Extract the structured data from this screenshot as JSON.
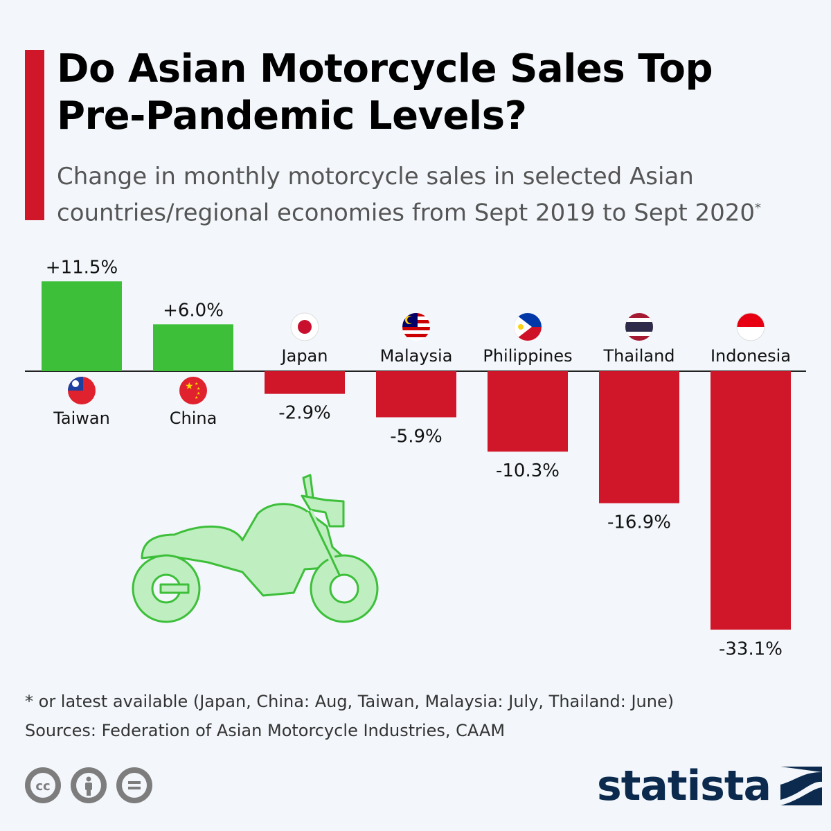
{
  "title": "Do Asian Motorcycle Sales Top Pre-Pandemic Levels?",
  "subtitle": "Change in monthly motorcycle sales in selected Asian countries/regional economies from Sept 2019 to Sept 2020",
  "subtitle_mark": "*",
  "footnote": "* or latest available (Japan, China: Aug, Taiwan, Malaysia: July, Thailand: June)",
  "sources": "Sources: Federation of Asian Motorcycle Industries, CAAM",
  "brand": "statista",
  "license_icons": [
    "cc-icon",
    "attribution-icon",
    "no-derivatives-icon"
  ],
  "colors": {
    "accent": "#d0172a",
    "positive": "#3dbf3a",
    "negative": "#d0172a",
    "brand": "#0b2a4e"
  },
  "chart_data": {
    "type": "bar",
    "categories": [
      "Taiwan",
      "China",
      "Japan",
      "Malaysia",
      "Philippines",
      "Thailand",
      "Indonesia"
    ],
    "values": [
      11.5,
      6.0,
      -2.9,
      -5.9,
      -10.3,
      -16.9,
      -33.1
    ],
    "value_labels": [
      "+11.5%",
      "+6.0%",
      "-2.9%",
      "-5.9%",
      "-10.3%",
      "-16.9%",
      "-33.1%"
    ],
    "flags": [
      "taiwan-flag-icon",
      "china-flag-icon",
      "japan-flag-icon",
      "malaysia-flag-icon",
      "philippines-flag-icon",
      "thailand-flag-icon",
      "indonesia-flag-icon"
    ],
    "ylim": [
      -33.1,
      11.5
    ],
    "grid": false,
    "legend": "none"
  }
}
